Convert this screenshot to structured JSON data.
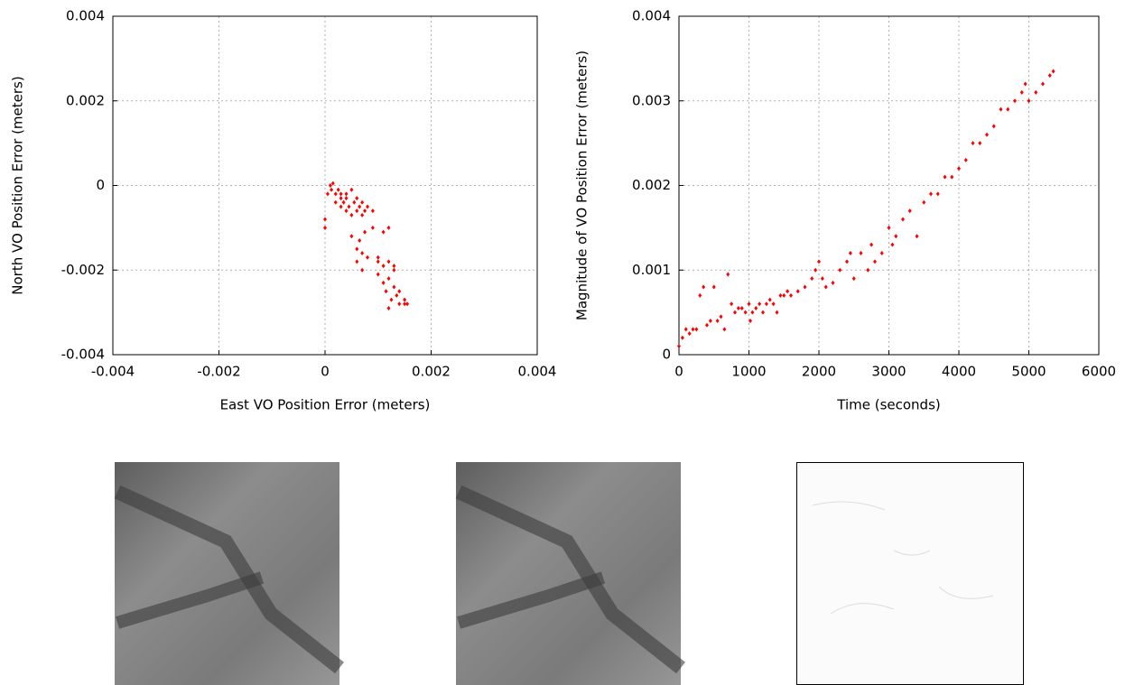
{
  "chart_data": [
    {
      "type": "scatter",
      "xlabel": "East VO Position Error (meters)",
      "ylabel": "North VO Position Error (meters)",
      "xlim": [
        -0.004,
        0.004
      ],
      "ylim": [
        -0.004,
        0.004
      ],
      "xticks": [
        -0.004,
        -0.002,
        0,
        0.002,
        0.004
      ],
      "yticks": [
        -0.004,
        -0.002,
        0,
        0.002,
        0.004
      ],
      "grid": true,
      "color": "#ff0000",
      "x": [
        0.0,
        0.0,
        5e-05,
        0.0001,
        0.00012,
        0.00015,
        0.0002,
        0.0002,
        0.00025,
        0.0003,
        0.0003,
        0.00035,
        0.0004,
        0.0004,
        0.00045,
        0.0005,
        0.0005,
        0.00055,
        0.0006,
        0.0006,
        0.00065,
        0.0007,
        0.0007,
        0.00075,
        0.0008,
        0.0005,
        0.0006,
        0.0006,
        0.00065,
        0.0007,
        0.0007,
        0.00075,
        0.0008,
        0.0009,
        0.0009,
        0.001,
        0.001,
        0.0011,
        0.0011,
        0.0012,
        0.0012,
        0.0011,
        0.00115,
        0.0012,
        0.0012,
        0.00125,
        0.0013,
        0.0013,
        0.00135,
        0.0014,
        0.0014,
        0.0015,
        0.0015,
        0.00155,
        0.0013,
        0.001,
        0.0004,
        0.0003
      ],
      "values": [
        -0.0008,
        -0.001,
        -0.0002,
        0.0,
        -0.0001,
        5e-05,
        -0.0002,
        -0.0004,
        -0.0001,
        -0.0005,
        -0.0003,
        -0.0004,
        -0.0006,
        -0.0002,
        -0.0005,
        -0.0001,
        -0.0007,
        -0.0004,
        -0.0006,
        -0.0003,
        -0.0005,
        -0.0007,
        -0.0004,
        -0.0006,
        -0.0005,
        -0.0012,
        -0.0015,
        -0.0018,
        -0.0013,
        -0.0016,
        -0.002,
        -0.0011,
        -0.0017,
        -0.0006,
        -0.001,
        -0.0017,
        -0.0018,
        -0.0011,
        -0.0019,
        -0.001,
        -0.0018,
        -0.0023,
        -0.0025,
        -0.0022,
        -0.0029,
        -0.0027,
        -0.0024,
        -0.0019,
        -0.0026,
        -0.0028,
        -0.0025,
        -0.0027,
        -0.0028,
        -0.0028,
        -0.002,
        -0.0021,
        -0.0003,
        -0.0002
      ]
    },
    {
      "type": "scatter",
      "xlabel": "Time (seconds)",
      "ylabel": "Magnitude of VO Position Error (meters)",
      "xlim": [
        0,
        6000
      ],
      "ylim": [
        0,
        0.004
      ],
      "xticks": [
        0,
        1000,
        2000,
        3000,
        4000,
        5000,
        6000
      ],
      "yticks": [
        0,
        0.001,
        0.002,
        0.003,
        0.004
      ],
      "grid": true,
      "color": "#ff0000",
      "x": [
        0,
        50,
        100,
        150,
        200,
        250,
        300,
        350,
        400,
        450,
        500,
        550,
        600,
        650,
        700,
        750,
        800,
        850,
        900,
        950,
        1000,
        1020,
        1050,
        1100,
        1150,
        1200,
        1250,
        1300,
        1350,
        1400,
        1450,
        1500,
        1550,
        1600,
        1700,
        1800,
        1900,
        1950,
        2000,
        2050,
        2100,
        2200,
        2300,
        2400,
        2450,
        2500,
        2600,
        2700,
        2750,
        2800,
        2900,
        3000,
        3050,
        3100,
        3200,
        3300,
        3400,
        3500,
        3600,
        3700,
        3800,
        3900,
        4000,
        4100,
        4200,
        4300,
        4400,
        4500,
        4600,
        4700,
        4800,
        4900,
        4950,
        5000,
        5100,
        5200,
        5300,
        5350
      ],
      "values": [
        0.0001,
        0.0002,
        0.0003,
        0.00025,
        0.0003,
        0.0003,
        0.0007,
        0.0008,
        0.00035,
        0.0004,
        0.0008,
        0.0004,
        0.00045,
        0.0003,
        0.00095,
        0.0006,
        0.0005,
        0.00055,
        0.00055,
        0.0005,
        0.0006,
        0.0004,
        0.0005,
        0.00055,
        0.0006,
        0.0005,
        0.0006,
        0.00065,
        0.0006,
        0.0005,
        0.0007,
        0.0007,
        0.00075,
        0.0007,
        0.00075,
        0.0008,
        0.0009,
        0.001,
        0.0011,
        0.0009,
        0.0008,
        0.00085,
        0.001,
        0.0011,
        0.0012,
        0.0009,
        0.0012,
        0.001,
        0.0013,
        0.0011,
        0.0012,
        0.0015,
        0.0013,
        0.0014,
        0.0016,
        0.0017,
        0.0014,
        0.0018,
        0.0019,
        0.0019,
        0.0021,
        0.0021,
        0.0022,
        0.0023,
        0.0025,
        0.0025,
        0.0026,
        0.0027,
        0.0029,
        0.0029,
        0.003,
        0.0031,
        0.0032,
        0.003,
        0.0031,
        0.0032,
        0.0033,
        0.00335
      ]
    }
  ]
}
